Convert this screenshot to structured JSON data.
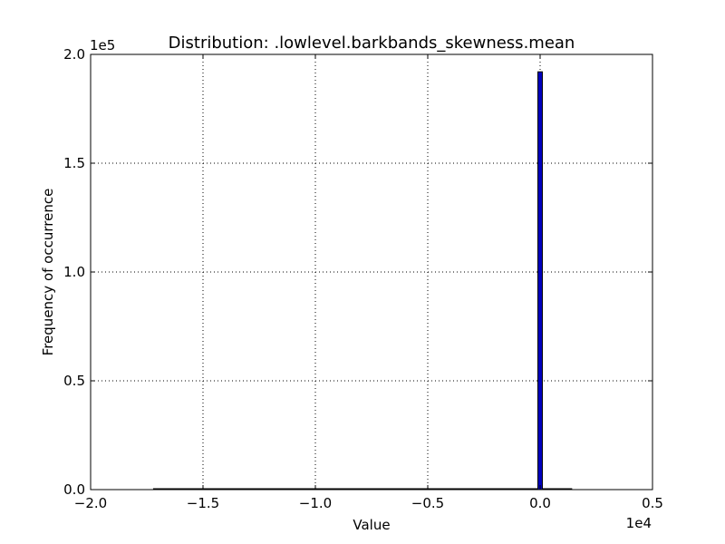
{
  "chart_data": {
    "type": "bar",
    "title": "Distribution: .lowlevel.barkbands_skewness.mean",
    "xlabel": "Value",
    "ylabel": "Frequency of occurrence",
    "x_multiplier": "1e4",
    "y_multiplier": "1e5",
    "xlim": [
      -2.0,
      0.5
    ],
    "ylim": [
      0.0,
      2.0
    ],
    "x_ticks": [
      -2.0,
      -1.5,
      -1.0,
      -0.5,
      0.0,
      0.5
    ],
    "x_tick_labels": [
      "−2.0",
      "−1.5",
      "−1.0",
      "−0.5",
      "0.0",
      "0.5"
    ],
    "y_ticks": [
      0.0,
      0.5,
      1.0,
      1.5,
      2.0
    ],
    "y_tick_labels": [
      "0.0",
      "0.5",
      "1.0",
      "1.5",
      "2.0"
    ],
    "grid": true,
    "bins": [
      {
        "x_start": -1.72,
        "x_end": 0.14,
        "value": 0.0
      },
      {
        "x_start": -0.01,
        "x_end": 0.01,
        "value": 1.92
      },
      {
        "x_start": 0.01,
        "x_end": 0.14,
        "value": 0.0
      }
    ],
    "bar_color": "#0000bf"
  }
}
